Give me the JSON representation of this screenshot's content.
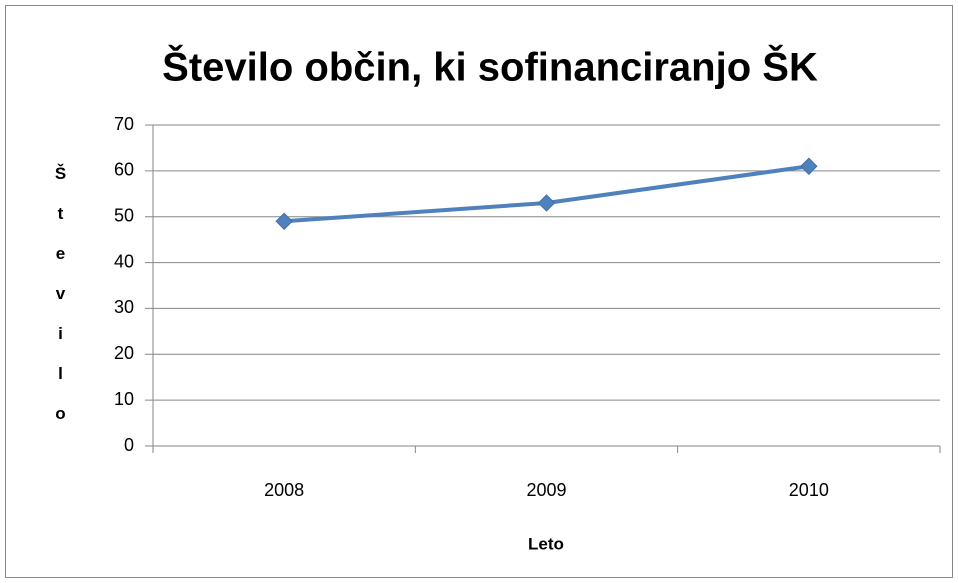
{
  "chart_data": {
    "type": "line",
    "title": "Število občin, ki sofinanciranjo ŠK",
    "x_label": "Leto",
    "y_label": "Število",
    "categories": [
      "2008",
      "2009",
      "2010"
    ],
    "values": [
      49,
      53,
      61
    ],
    "color": "#4f81bd",
    "ylim": [
      0,
      70
    ],
    "yticks": [
      0,
      10,
      20,
      30,
      40,
      50,
      60,
      70
    ],
    "grid": true
  }
}
